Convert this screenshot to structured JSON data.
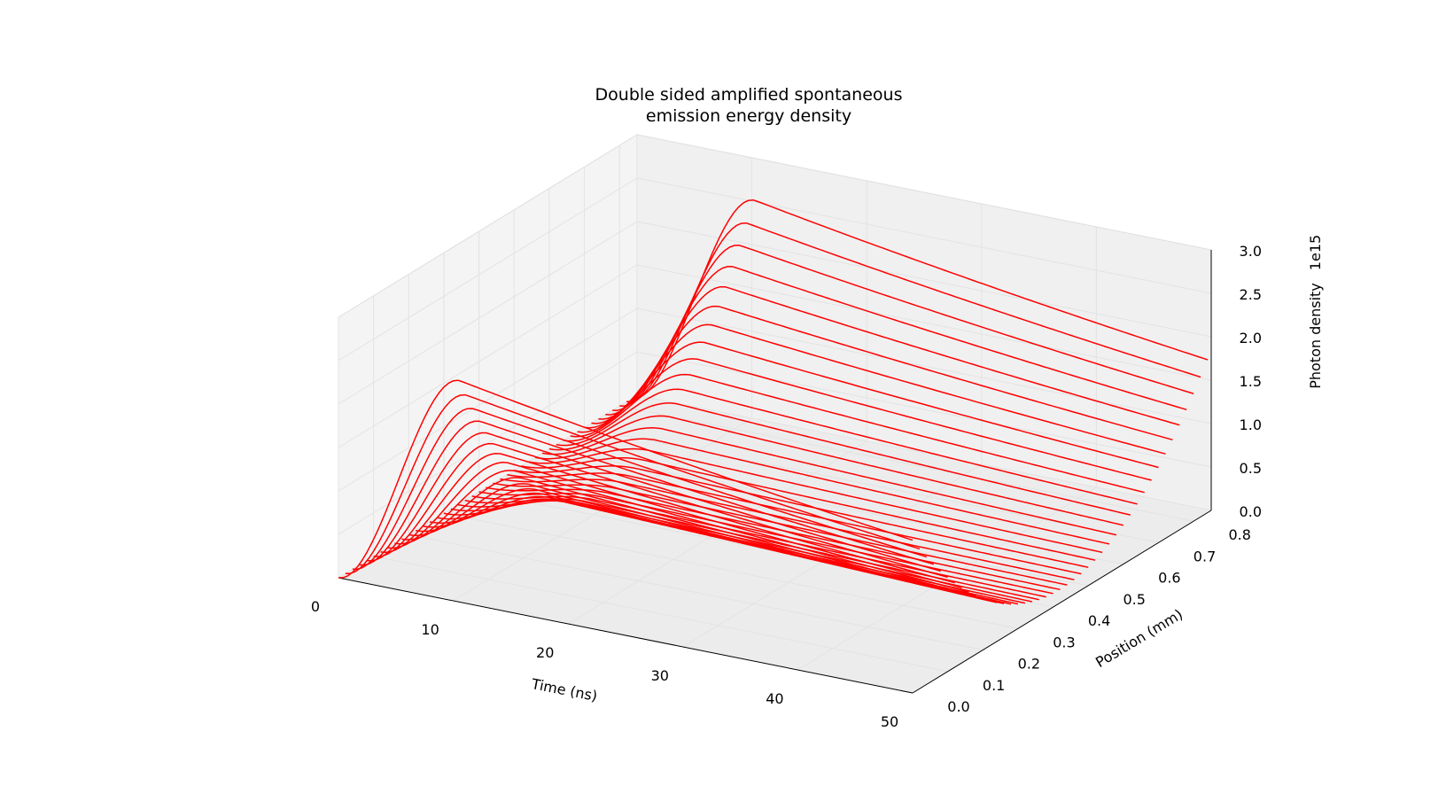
{
  "chart_data": {
    "type": "line3d",
    "title_lines": [
      "Double sided amplified spontaneous",
      "emission energy density"
    ],
    "xlabel": "Time (ns)",
    "ylabel": "Position (mm)",
    "zlabel": "Photon density",
    "z_offset_text": "1e15",
    "xlim": [
      0,
      50
    ],
    "ylim": [
      0,
      0.85
    ],
    "zlim": [
      0,
      3.0
    ],
    "x_ticks": [
      "0",
      "10",
      "20",
      "30",
      "40",
      "50"
    ],
    "y_ticks": [
      "0.0",
      "0.1",
      "0.2",
      "0.3",
      "0.4",
      "0.5",
      "0.6",
      "0.7",
      "0.8"
    ],
    "z_ticks": [
      "0.0",
      "0.5",
      "1.0",
      "1.5",
      "2.0",
      "2.5",
      "3.0"
    ],
    "grid": true,
    "line_color": "#ff0000",
    "pane_color": "#f2f2f2",
    "series_count": 43,
    "series_model": {
      "description_of_traces": "one line per position from 0.0 to 0.84 mm; photon density (x1e15) rises with time, rounded peak at ~10.5 ns, decreasing afterwards; amplitude largest at the two ends of the rod and smallest at its centre",
      "positions_mm": [
        0.0,
        0.84
      ],
      "peak_time_ns": 10.5,
      "peak_values": {
        "position_0.0mm": 2.55,
        "position_0.42mm": 0.22,
        "position_0.84mm": 2.55
      },
      "value_at_50ns_fraction_of_peak": 0.69
    }
  }
}
